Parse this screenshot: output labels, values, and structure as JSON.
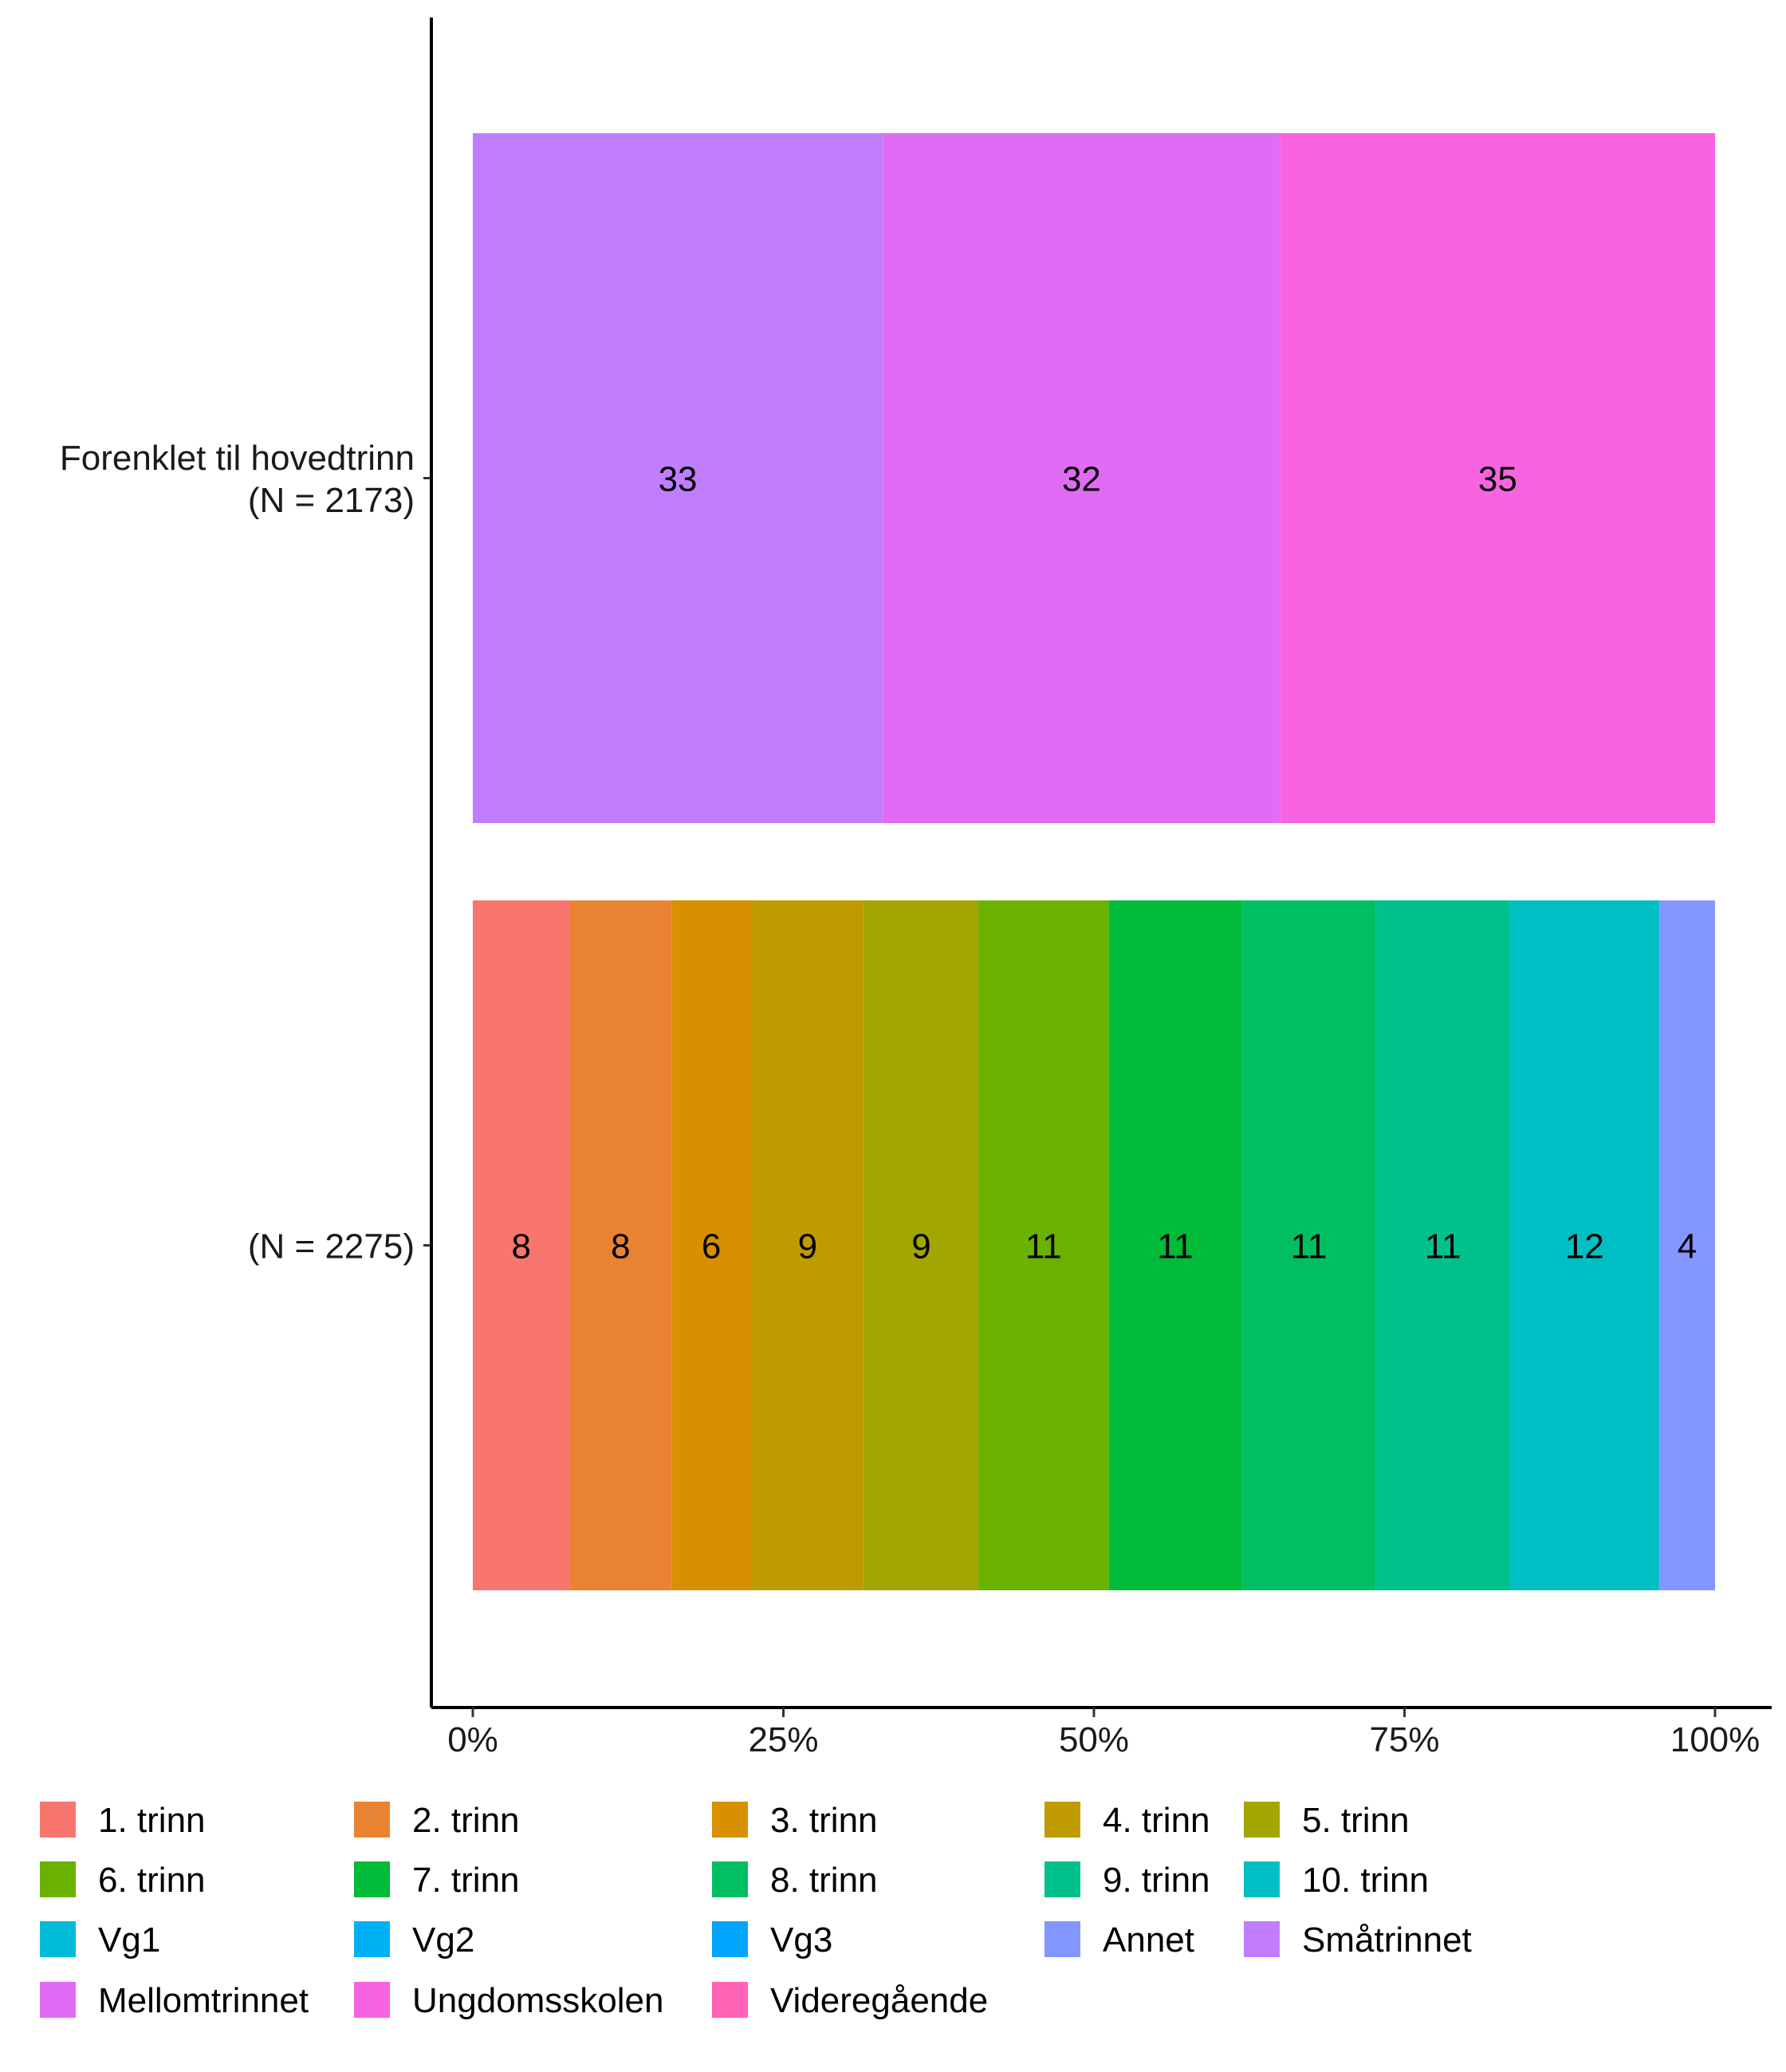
{
  "chart_data": {
    "type": "bar",
    "orientation": "horizontal",
    "stacked": true,
    "normalized": true,
    "xlim": [
      0,
      100
    ],
    "x_ticks": [
      "0%",
      "25%",
      "50%",
      "75%",
      "100%"
    ],
    "grid": false,
    "legend_position": "bottom",
    "categories": [
      "Forenklet til hovedtrinn\n(N = 2173)",
      "(N = 2275)"
    ],
    "rows": [
      {
        "label_lines": [
          "Forenklet til hovedtrinn",
          "(N = 2173)"
        ],
        "segments": [
          {
            "name": "Småtrinnet",
            "value": 33,
            "label": "33",
            "color": "#C07EFF"
          },
          {
            "name": "Mellomtrinnet",
            "value": 32,
            "label": "32",
            "color": "#E06CF6"
          },
          {
            "name": "Ungdomsskolen",
            "value": 35,
            "label": "35",
            "color": "#F864DF"
          }
        ]
      },
      {
        "label_lines": [
          "(N = 2275)"
        ],
        "segments": [
          {
            "name": "1. trinn",
            "value": 7.8,
            "label": "8",
            "color": "#F8766D"
          },
          {
            "name": "2. trinn",
            "value": 8.2,
            "label": "8",
            "color": "#EA8331"
          },
          {
            "name": "3. trinn",
            "value": 6.4,
            "label": "6",
            "color": "#D89000"
          },
          {
            "name": "4. trinn",
            "value": 9.1,
            "label": "9",
            "color": "#C09B00"
          },
          {
            "name": "5. trinn",
            "value": 9.2,
            "label": "9",
            "color": "#A3A500"
          },
          {
            "name": "6. trinn",
            "value": 10.5,
            "label": "11",
            "color": "#6BB100"
          },
          {
            "name": "7. trinn",
            "value": 10.7,
            "label": "11",
            "color": "#00BA38"
          },
          {
            "name": "8. trinn",
            "value": 10.8,
            "label": "11",
            "color": "#00BF62"
          },
          {
            "name": "9. trinn",
            "value": 10.8,
            "label": "11",
            "color": "#00C08B"
          },
          {
            "name": "10. trinn",
            "value": 12.0,
            "label": "12",
            "color": "#00BFC4"
          },
          {
            "name": "Annet",
            "value": 4.5,
            "label": "4",
            "color": "#8496FF"
          }
        ]
      }
    ],
    "legend": [
      {
        "name": "1. trinn",
        "color": "#F8766D"
      },
      {
        "name": "2. trinn",
        "color": "#EA8331"
      },
      {
        "name": "3. trinn",
        "color": "#D89000"
      },
      {
        "name": "4. trinn",
        "color": "#C09B00"
      },
      {
        "name": "5. trinn",
        "color": "#A3A500"
      },
      {
        "name": "6. trinn",
        "color": "#6BB100"
      },
      {
        "name": "7. trinn",
        "color": "#00BA38"
      },
      {
        "name": "8. trinn",
        "color": "#00BF62"
      },
      {
        "name": "9. trinn",
        "color": "#00C08B"
      },
      {
        "name": "10. trinn",
        "color": "#00BFC4"
      },
      {
        "name": "Vg1",
        "color": "#00BCD8"
      },
      {
        "name": "Vg2",
        "color": "#00B0F6"
      },
      {
        "name": "Vg3",
        "color": "#00A5FF"
      },
      {
        "name": "Annet",
        "color": "#8496FF"
      },
      {
        "name": "Småtrinnet",
        "color": "#C07EFF"
      },
      {
        "name": "Mellomtrinnet",
        "color": "#E06CF6"
      },
      {
        "name": "Ungdomsskolen",
        "color": "#F864DF"
      },
      {
        "name": "Videregående",
        "color": "#FF63B6"
      }
    ]
  }
}
